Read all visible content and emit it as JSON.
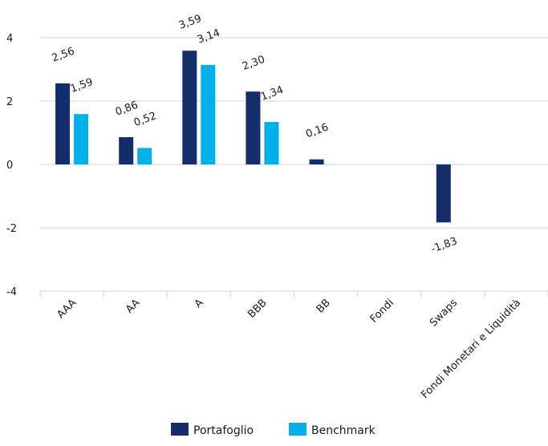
{
  "chart_data": {
    "type": "bar",
    "categories": [
      "AAA",
      "AA",
      "A",
      "BBB",
      "BB",
      "Fondi",
      "Swaps",
      "Fondi Monetari e Liquidità"
    ],
    "series": [
      {
        "name": "Portafoglio",
        "color": "#142d6b",
        "values": [
          2.56,
          0.86,
          3.59,
          2.3,
          0.16,
          null,
          -1.83,
          null
        ],
        "labels": [
          "2,56",
          "0,86",
          "3,59",
          "2,30",
          "0,16",
          "",
          "-1,83",
          ""
        ]
      },
      {
        "name": "Benchmark",
        "color": "#00b0e8",
        "values": [
          1.59,
          0.52,
          3.14,
          1.34,
          null,
          null,
          null,
          null
        ],
        "labels": [
          "1,59",
          "0,52",
          "3,14",
          "1,34",
          "",
          "",
          "",
          ""
        ]
      }
    ],
    "yticks": [
      {
        "value": 4,
        "label": "4"
      },
      {
        "value": 2,
        "label": "2"
      },
      {
        "value": 0,
        "label": "0"
      },
      {
        "value": -2,
        "label": "-2"
      },
      {
        "value": -4,
        "label": "-4"
      }
    ],
    "ylim": [
      -4,
      4
    ],
    "grid": true,
    "legend": "bottom"
  }
}
